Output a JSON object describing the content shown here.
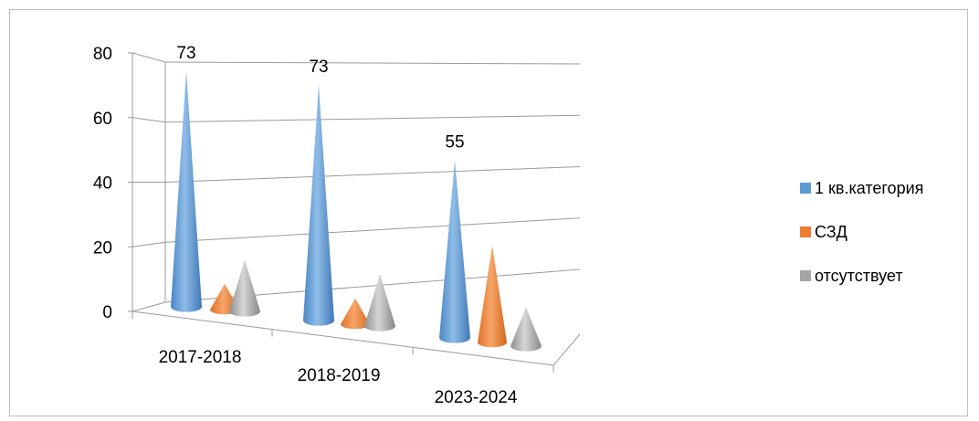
{
  "chart_data": {
    "type": "bar",
    "style": "3d-cone",
    "categories": [
      "2017-2018",
      "2018-2019",
      "2023-2024"
    ],
    "series": [
      {
        "name": "1 кв.категория",
        "values": [
          73,
          73,
          55
        ],
        "color": "#5B9BD5",
        "data_labels": [
          "73",
          "73",
          "55"
        ]
      },
      {
        "name": "СЗД",
        "values": [
          8,
          8,
          30
        ],
        "color": "#ED7D31"
      },
      {
        "name": "отсутствует",
        "values": [
          16,
          16,
          12
        ],
        "color": "#A5A5A5"
      }
    ],
    "y_ticks": [
      "0",
      "20",
      "40",
      "60",
      "80"
    ],
    "ylim": [
      0,
      80
    ],
    "grid": true,
    "legend_position": "right"
  }
}
